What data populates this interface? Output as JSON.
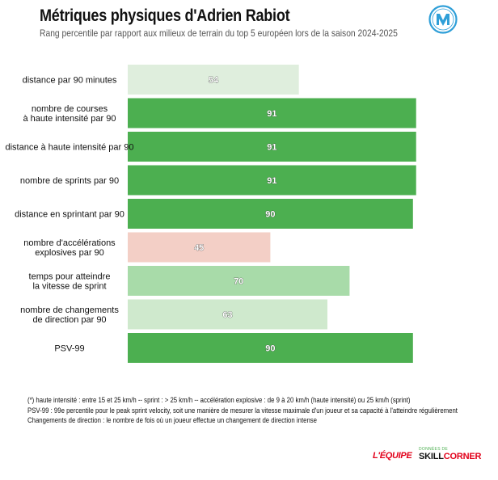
{
  "header": {
    "title": "Métriques physiques d'Adrien Rabiot",
    "subtitle": "Rang percentile par rapport aux milieux de terrain du top 5 européen lors de la saison 2024-2025"
  },
  "logo": {
    "icon": "om-club-crest-icon",
    "color": "#2f9fd8"
  },
  "chart_data": {
    "type": "bar",
    "orientation": "horizontal",
    "xlim": [
      0,
      100
    ],
    "grid": false,
    "categories": [
      "distance par 90 minutes",
      "nombre de courses\nà haute intensité par 90",
      "distance à haute intensité par 90",
      "nombre de sprints par 90",
      "distance en sprintant par 90",
      "nombre d'accélérations\nexplosives par 90",
      "temps pour atteindre\nla vitesse de sprint",
      "nombre de changements\nde direction par 90",
      "PSV-99"
    ],
    "values": [
      54,
      91,
      91,
      91,
      90,
      45,
      70,
      63,
      90
    ],
    "colors": [
      "#dfeedd",
      "#4caf50",
      "#4caf50",
      "#4caf50",
      "#4caf50",
      "#f3cfc6",
      "#a8dba9",
      "#cfe9cd",
      "#4caf50"
    ]
  },
  "footnotes": [
    "(*) haute intensité : entre 15 et 25 km/h -- sprint : > 25 km/h -- accélération explosive : de 9 à 20 km/h (haute intensité) ou 25 km/h (sprint)",
    "PSV-99 : 99e percentile pour le peak sprint velocity, soit une manière de mesurer la vitesse maximale d'un joueur et sa capacité à l'atteindre régulièrement",
    "Changements de direction : le nombre de fois où un joueur effectue un changement de direction intense"
  ],
  "branding": {
    "equipe": "L'ÉQUIPE",
    "skill_small": "DONNÉES DE",
    "skill_a": "SKILL",
    "skill_b": "CORNER"
  }
}
